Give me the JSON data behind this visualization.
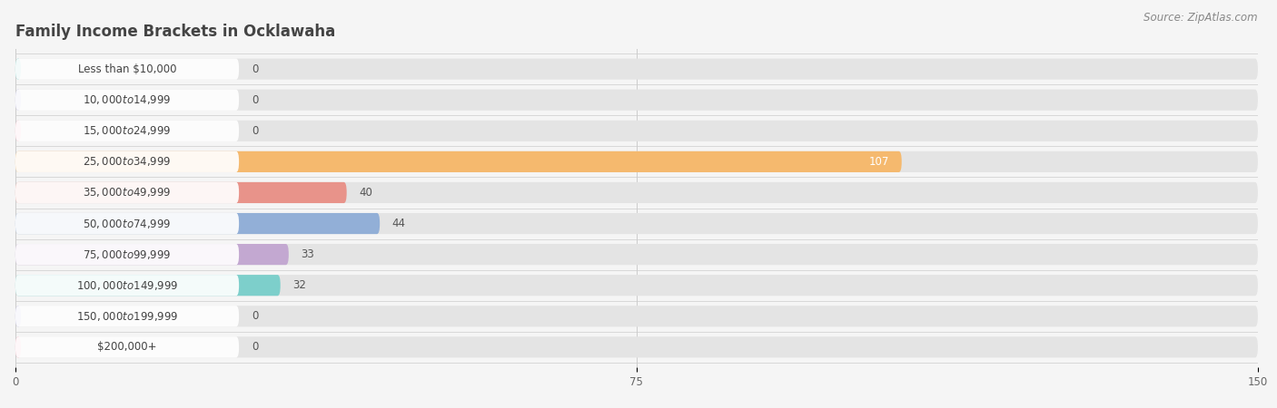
{
  "title": "Family Income Brackets in Ocklawaha",
  "source": "Source: ZipAtlas.com",
  "categories": [
    "Less than $10,000",
    "$10,000 to $14,999",
    "$15,000 to $24,999",
    "$25,000 to $34,999",
    "$35,000 to $49,999",
    "$50,000 to $74,999",
    "$75,000 to $99,999",
    "$100,000 to $149,999",
    "$150,000 to $199,999",
    "$200,000+"
  ],
  "values": [
    0,
    0,
    0,
    107,
    40,
    44,
    33,
    32,
    0,
    0
  ],
  "bar_colors": [
    "#6dcdc8",
    "#b3aee0",
    "#f7a8b8",
    "#f5b96e",
    "#e8938a",
    "#92afd7",
    "#c3a8d1",
    "#7dcfcb",
    "#b3aee0",
    "#f7a8b8"
  ],
  "background_color": "#f5f5f5",
  "bar_bg_color": "#e4e4e4",
  "xlim": [
    0,
    150
  ],
  "xticks": [
    0,
    75,
    150
  ],
  "title_fontsize": 12,
  "label_fontsize": 8.5,
  "value_fontsize": 8.5,
  "source_fontsize": 8.5
}
